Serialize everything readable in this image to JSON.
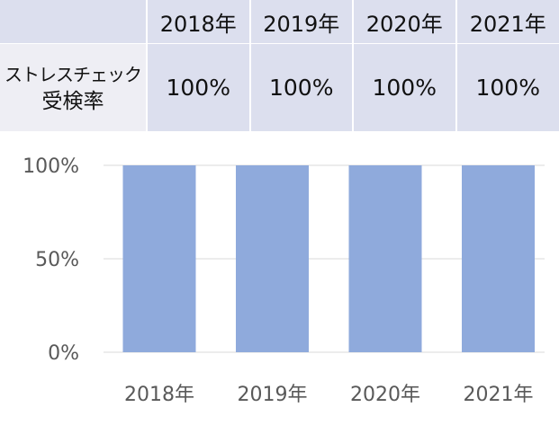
{
  "table": {
    "row_label_line1": "ストレスチェック",
    "row_label_line2": "受検率",
    "headers": [
      "2018年",
      "2019年",
      "2020年",
      "2021年"
    ],
    "values": [
      "100%",
      "100%",
      "100%",
      "100%"
    ]
  },
  "chart_data": {
    "type": "bar",
    "categories": [
      "2018年",
      "2019年",
      "2020年",
      "2021年"
    ],
    "series": [
      {
        "values": [
          100,
          100,
          100,
          100
        ]
      }
    ],
    "ylim": [
      0,
      100
    ],
    "yticks": [
      "0%",
      "50%",
      "100%"
    ],
    "ytick_values": [
      0,
      50,
      100
    ],
    "grid": true,
    "bar_color": "#8faadc",
    "grid_color": "#d9d9d9"
  }
}
